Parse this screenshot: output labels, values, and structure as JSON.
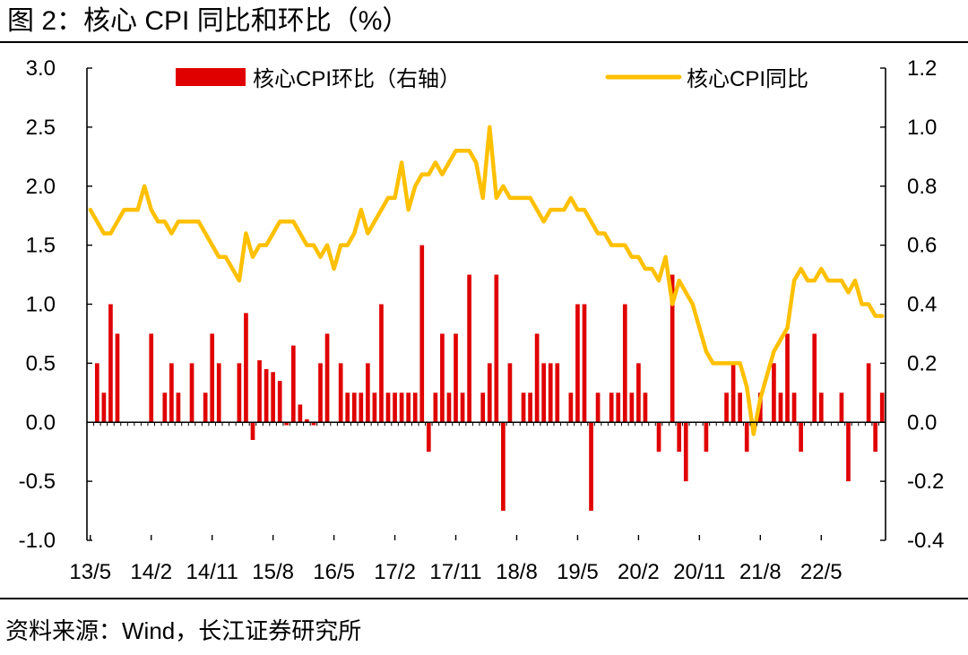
{
  "figure": {
    "title": "图 2：核心 CPI 同比和环比（%）",
    "source": "资料来源：Wind，长江证券研究所"
  },
  "chart_data": {
    "type": "bar+line",
    "colors": {
      "bar": "#e00000",
      "line": "#ffc000",
      "axis": "#000000"
    },
    "legend": [
      "核心CPI环比（右轴）",
      "核心CPI同比"
    ],
    "legend_position": "top",
    "y_left": {
      "min": -1.0,
      "max": 3.0,
      "ticks": [
        "-1.0",
        "-0.5",
        "0.0",
        "0.5",
        "1.0",
        "1.5",
        "2.0",
        "2.5",
        "3.0"
      ]
    },
    "y_right": {
      "min": -0.4,
      "max": 1.2,
      "ticks": [
        "-0.4",
        "-0.2",
        "0.0",
        "0.2",
        "0.4",
        "0.6",
        "0.8",
        "1.0",
        "1.2"
      ]
    },
    "x_tick_labels": [
      "13/5",
      "14/2",
      "14/11",
      "15/8",
      "16/5",
      "17/2",
      "17/11",
      "18/8",
      "19/5",
      "20/2",
      "20/11",
      "21/8",
      "22/5"
    ],
    "x_label_every": 9,
    "grid": false,
    "series": [
      {
        "name": "核心CPI环比（右轴）",
        "type": "bar",
        "axis": "right",
        "values": [
          0.0,
          0.2,
          0.1,
          0.4,
          0.3,
          0.0,
          0.0,
          0.0,
          0.0,
          0.3,
          0.0,
          0.1,
          0.2,
          0.1,
          0.0,
          0.2,
          0.0,
          0.1,
          0.3,
          0.2,
          0.0,
          0.0,
          0.2,
          0.37,
          -0.06,
          0.21,
          0.18,
          0.17,
          0.14,
          -0.01,
          0.26,
          0.06,
          0.01,
          -0.01,
          0.2,
          0.3,
          0.0,
          0.2,
          0.1,
          0.1,
          0.1,
          0.2,
          0.1,
          0.4,
          0.1,
          0.1,
          0.1,
          0.1,
          0.1,
          0.6,
          -0.1,
          0.1,
          0.3,
          0.1,
          0.3,
          0.1,
          0.5,
          0.0,
          0.1,
          0.2,
          0.5,
          -0.3,
          0.2,
          0.0,
          0.1,
          0.1,
          0.3,
          0.2,
          0.2,
          0.2,
          0.0,
          0.1,
          0.4,
          0.4,
          -0.3,
          0.1,
          0.0,
          0.1,
          0.1,
          0.4,
          0.1,
          0.2,
          0.1,
          0.0,
          -0.1,
          0.0,
          0.5,
          -0.1,
          -0.2,
          0.0,
          0.0,
          -0.1,
          0.0,
          0.0,
          0.1,
          0.2,
          0.1,
          -0.1,
          0.0,
          0.1,
          0.0,
          0.2,
          0.1,
          0.3,
          0.1,
          -0.1,
          0.0,
          0.3,
          0.1,
          0.0,
          0.0,
          0.1,
          -0.2,
          0.0,
          0.0,
          0.2,
          -0.1,
          0.1
        ]
      },
      {
        "name": "核心CPI同比",
        "type": "line",
        "axis": "left",
        "values": [
          1.8,
          1.7,
          1.6,
          1.6,
          1.7,
          1.8,
          1.8,
          1.8,
          2.0,
          1.8,
          1.7,
          1.7,
          1.6,
          1.7,
          1.7,
          1.7,
          1.7,
          1.6,
          1.5,
          1.4,
          1.4,
          1.3,
          1.2,
          1.6,
          1.4,
          1.5,
          1.5,
          1.6,
          1.7,
          1.7,
          1.7,
          1.6,
          1.5,
          1.5,
          1.4,
          1.5,
          1.3,
          1.5,
          1.5,
          1.6,
          1.8,
          1.6,
          1.7,
          1.8,
          1.9,
          1.9,
          2.2,
          1.8,
          2.0,
          2.1,
          2.1,
          2.2,
          2.1,
          2.2,
          2.3,
          2.3,
          2.3,
          2.2,
          1.9,
          2.5,
          1.9,
          2.0,
          1.9,
          1.9,
          1.9,
          1.9,
          1.8,
          1.7,
          1.8,
          1.8,
          1.8,
          1.9,
          1.8,
          1.8,
          1.7,
          1.6,
          1.6,
          1.5,
          1.5,
          1.5,
          1.4,
          1.4,
          1.3,
          1.3,
          1.2,
          1.4,
          1.0,
          1.2,
          1.1,
          1.0,
          0.8,
          0.6,
          0.5,
          0.5,
          0.5,
          0.5,
          0.5,
          0.3,
          -0.1,
          0.2,
          0.4,
          0.6,
          0.7,
          0.8,
          1.2,
          1.3,
          1.2,
          1.2,
          1.3,
          1.2,
          1.2,
          1.2,
          1.1,
          1.2,
          1.0,
          1.0,
          0.9,
          0.9
        ]
      }
    ]
  }
}
